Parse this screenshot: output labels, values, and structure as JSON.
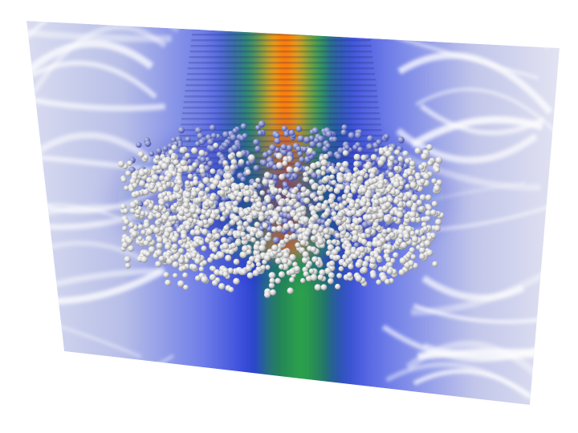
{
  "scene": {
    "background_color": "#ffffff",
    "field_colors": [
      "#f2f2f8",
      "#6f7ee8",
      "#2c3fd8",
      "#1f7a5a",
      "#2ea64a",
      "#f0a018",
      "#ff6a00"
    ],
    "particle_colors": [
      "#ffffff",
      "#e6e6e6",
      "#bdbdbd",
      "#8a93c7",
      "#5a6ad6"
    ],
    "particle_count": 2600
  }
}
